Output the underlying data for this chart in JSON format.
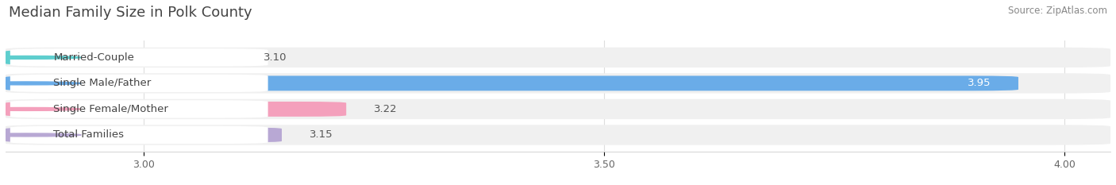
{
  "title": "Median Family Size in Polk County",
  "source": "Source: ZipAtlas.com",
  "categories": [
    "Married-Couple",
    "Single Male/Father",
    "Single Female/Mother",
    "Total Families"
  ],
  "values": [
    3.1,
    3.95,
    3.22,
    3.15
  ],
  "bar_colors": [
    "#5ecece",
    "#6aace8",
    "#f4a0bc",
    "#b8a8d4"
  ],
  "dot_colors": [
    "#5ecece",
    "#6aace8",
    "#f4a0bc",
    "#b8a8d4"
  ],
  "row_bg_color": "#f0f0f0",
  "xlim_min": 2.85,
  "xlim_max": 4.05,
  "xticks": [
    3.0,
    3.5,
    4.0
  ],
  "label_fontsize": 9.5,
  "value_fontsize": 9.5,
  "tick_fontsize": 9,
  "title_fontsize": 13,
  "source_fontsize": 8.5,
  "background_color": "#ffffff",
  "title_color": "#444444",
  "source_color": "#888888",
  "text_color": "#444444",
  "value_color_outside": "#555555",
  "value_color_inside": "#ffffff",
  "grid_color": "#dddddd"
}
